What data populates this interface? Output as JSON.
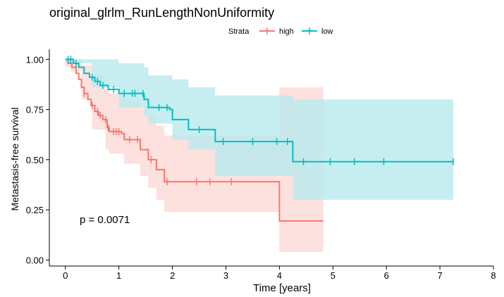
{
  "chart_data": {
    "type": "line",
    "subtype": "kaplan-meier",
    "title": "original_glrlm_RunLengthNonUniformity",
    "xlabel": "Time [years]",
    "ylabel": "Metastasis-free survival",
    "xlim": [
      -0.3,
      8.0
    ],
    "ylim": [
      -0.03,
      1.05
    ],
    "x_ticks": [
      "0",
      "1",
      "2",
      "3",
      "4",
      "5",
      "6",
      "7",
      "8"
    ],
    "y_ticks": [
      "0.00",
      "0.25",
      "0.50",
      "0.75",
      "1.00"
    ],
    "grid": false,
    "legend": {
      "title": "Strata",
      "position": "top",
      "entries": [
        "high",
        "low"
      ]
    },
    "annotation": "p = 0.0071",
    "series": [
      {
        "name": "high",
        "color": "#F8766D",
        "ci_color": "#FDD9D6",
        "steps": [
          [
            0,
            1.0
          ],
          [
            0.05,
            0.98
          ],
          [
            0.12,
            0.96
          ],
          [
            0.2,
            0.93
          ],
          [
            0.25,
            0.9
          ],
          [
            0.3,
            0.86
          ],
          [
            0.35,
            0.83
          ],
          [
            0.42,
            0.8
          ],
          [
            0.48,
            0.77
          ],
          [
            0.55,
            0.74
          ],
          [
            0.62,
            0.72
          ],
          [
            0.7,
            0.7
          ],
          [
            0.78,
            0.66
          ],
          [
            0.82,
            0.64
          ],
          [
            1.05,
            0.63
          ],
          [
            1.1,
            0.6
          ],
          [
            1.4,
            0.55
          ],
          [
            1.55,
            0.5
          ],
          [
            1.7,
            0.45
          ],
          [
            1.85,
            0.39
          ],
          [
            4.0,
            0.195
          ],
          [
            4.82,
            0.195
          ]
        ],
        "upper": [
          [
            0,
            1.0
          ],
          [
            0.1,
            1.0
          ],
          [
            0.3,
            0.97
          ],
          [
            0.5,
            0.92
          ],
          [
            0.75,
            0.85
          ],
          [
            0.82,
            0.83
          ],
          [
            1.1,
            0.8
          ],
          [
            1.4,
            0.76
          ],
          [
            1.55,
            0.72
          ],
          [
            1.7,
            0.67
          ],
          [
            1.85,
            0.62
          ],
          [
            4.0,
            0.86
          ],
          [
            4.82,
            0.86
          ]
        ],
        "lower": [
          [
            0,
            0.96
          ],
          [
            0.1,
            0.94
          ],
          [
            0.3,
            0.8
          ],
          [
            0.5,
            0.65
          ],
          [
            0.75,
            0.55
          ],
          [
            0.82,
            0.53
          ],
          [
            1.1,
            0.48
          ],
          [
            1.4,
            0.42
          ],
          [
            1.55,
            0.36
          ],
          [
            1.7,
            0.3
          ],
          [
            1.85,
            0.24
          ],
          [
            4.0,
            0.04
          ],
          [
            4.82,
            0.04
          ]
        ],
        "censor_x": [
          0.35,
          0.5,
          0.6,
          0.65,
          0.75,
          0.8,
          0.9,
          0.95,
          1.0,
          1.2,
          1.35,
          1.6,
          1.9,
          2.45,
          2.7,
          3.1
        ],
        "end_x": 4.82
      },
      {
        "name": "low",
        "color": "#00BFC4",
        "ci_color": "#B8EAEC",
        "steps": [
          [
            0,
            1.0
          ],
          [
            0.15,
            0.98
          ],
          [
            0.25,
            0.96
          ],
          [
            0.35,
            0.93
          ],
          [
            0.45,
            0.91
          ],
          [
            0.55,
            0.89
          ],
          [
            0.65,
            0.87
          ],
          [
            0.8,
            0.85
          ],
          [
            1.0,
            0.83
          ],
          [
            1.47,
            0.8
          ],
          [
            1.55,
            0.76
          ],
          [
            1.95,
            0.75
          ],
          [
            2.0,
            0.7
          ],
          [
            2.3,
            0.65
          ],
          [
            2.8,
            0.59
          ],
          [
            4.25,
            0.49
          ],
          [
            7.25,
            0.49
          ]
        ],
        "upper": [
          [
            0,
            1.0
          ],
          [
            0.5,
            1.0
          ],
          [
            1.0,
            0.98
          ],
          [
            1.47,
            0.96
          ],
          [
            1.55,
            0.92
          ],
          [
            2.0,
            0.9
          ],
          [
            2.3,
            0.86
          ],
          [
            2.8,
            0.82
          ],
          [
            4.25,
            0.8
          ],
          [
            7.25,
            0.8
          ]
        ],
        "lower": [
          [
            0,
            0.98
          ],
          [
            0.5,
            0.86
          ],
          [
            1.0,
            0.76
          ],
          [
            1.47,
            0.72
          ],
          [
            1.55,
            0.68
          ],
          [
            2.0,
            0.6
          ],
          [
            2.3,
            0.55
          ],
          [
            2.8,
            0.42
          ],
          [
            4.25,
            0.3
          ],
          [
            7.25,
            0.3
          ]
        ],
        "censor_x": [
          0.05,
          0.1,
          0.2,
          0.5,
          0.6,
          0.7,
          0.9,
          1.1,
          1.25,
          1.3,
          1.45,
          1.75,
          1.9,
          2.5,
          2.95,
          3.5,
          3.95,
          4.15,
          4.45,
          4.95,
          5.4,
          5.95,
          7.25
        ],
        "end_x": 7.25
      }
    ]
  }
}
